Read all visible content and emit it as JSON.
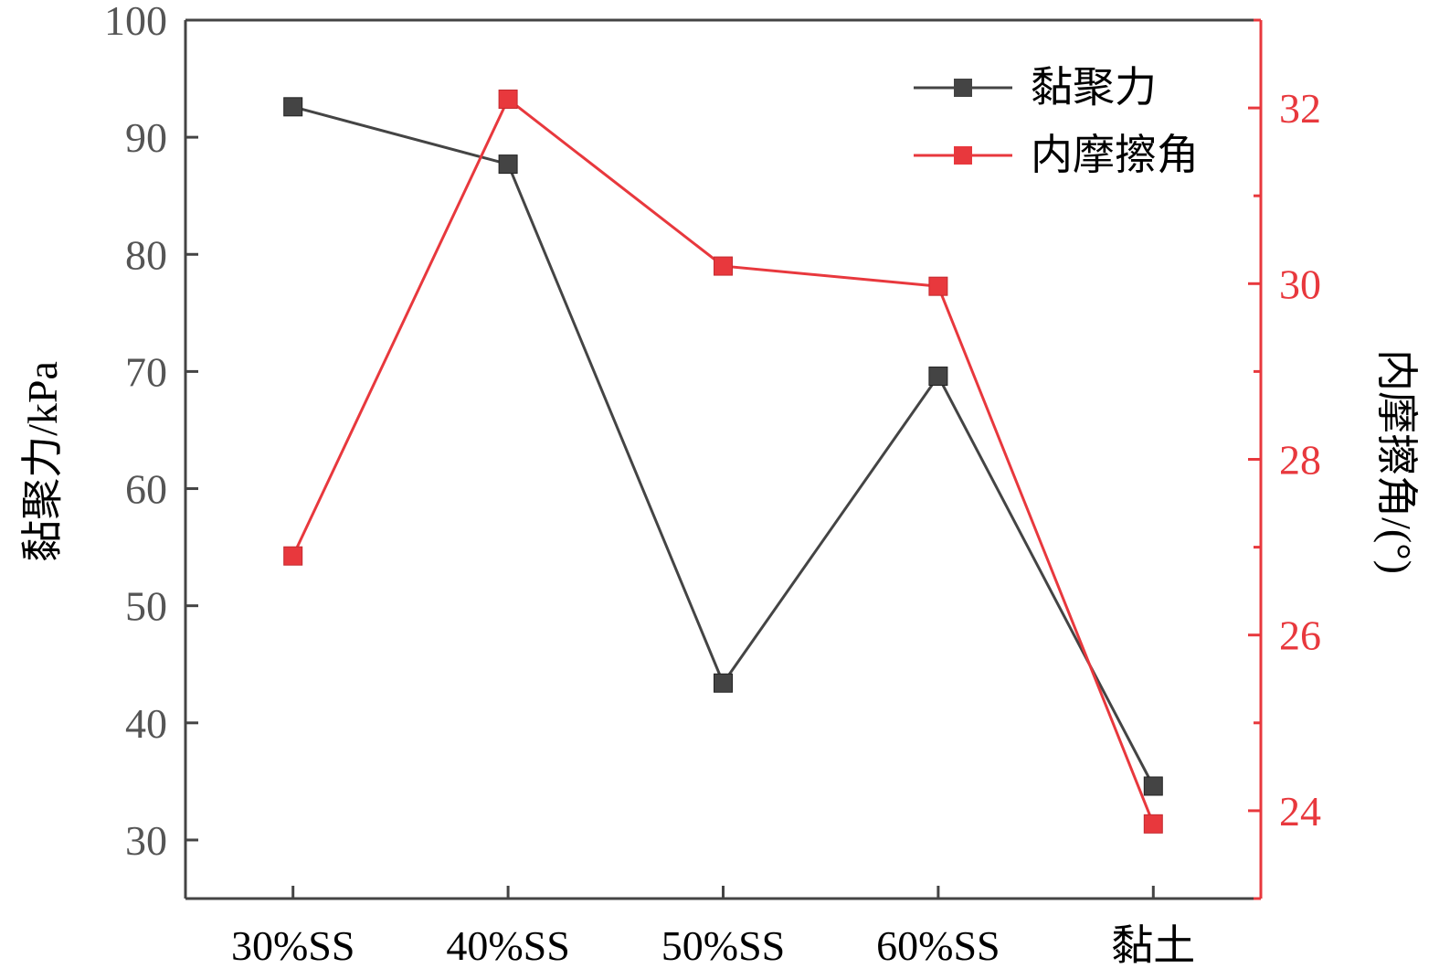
{
  "chart_data": {
    "type": "line",
    "categories": [
      "30%SS",
      "40%SS",
      "50%SS",
      "60%SS",
      "黏土"
    ],
    "series": [
      {
        "name": "黏聚力",
        "axis": "left",
        "color": "#444444",
        "values": [
          92.6,
          87.7,
          43.4,
          69.6,
          34.6
        ]
      },
      {
        "name": "内摩擦角",
        "axis": "right",
        "color": "#e8383d",
        "values": [
          26.9,
          32.1,
          30.2,
          29.97,
          23.85
        ]
      }
    ],
    "ylabel": "黏聚力/kPa",
    "y2label": "内摩擦角/(°)",
    "ylim": [
      25,
      100
    ],
    "yticks": [
      30,
      40,
      50,
      60,
      70,
      80,
      90,
      100
    ],
    "y2lim": [
      23,
      33
    ],
    "y2ticks": [
      24,
      26,
      28,
      30,
      32
    ],
    "legend_position": "top-right",
    "grid": false
  }
}
